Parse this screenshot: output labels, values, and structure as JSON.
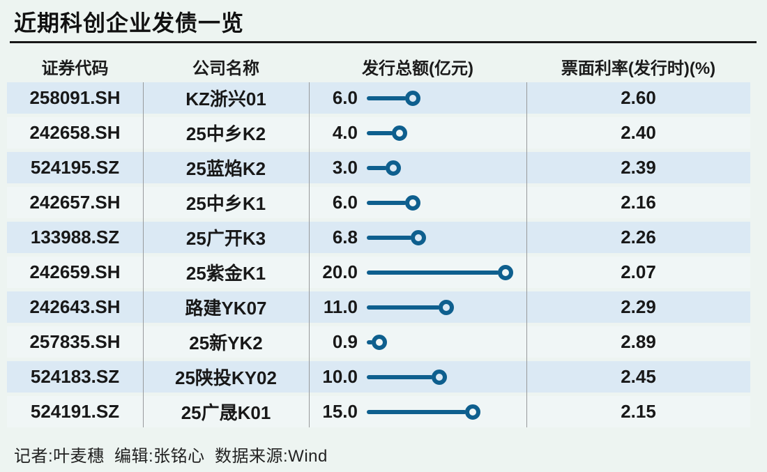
{
  "title": "近期科创企业发债一览",
  "table": {
    "headers": [
      "证券代码",
      "公司名称",
      "发行总额(亿元)",
      "票面利率(发行时)(%)"
    ],
    "rows": [
      {
        "code": "258091.SH",
        "name": "KZ浙兴01",
        "amount": "6.0",
        "rate": "2.60"
      },
      {
        "code": "242658.SH",
        "name": "25中乡K2",
        "amount": "4.0",
        "rate": "2.40"
      },
      {
        "code": "524195.SZ",
        "name": "25蓝焰K2",
        "amount": "3.0",
        "rate": "2.39"
      },
      {
        "code": "242657.SH",
        "name": "25中乡K1",
        "amount": "6.0",
        "rate": "2.16"
      },
      {
        "code": "133988.SZ",
        "name": "25广开K3",
        "amount": "6.8",
        "rate": "2.26"
      },
      {
        "code": "242659.SH",
        "name": "25紫金K1",
        "amount": "20.0",
        "rate": "2.07"
      },
      {
        "code": "242643.SH",
        "name": "路建YK07",
        "amount": "11.0",
        "rate": "2.29"
      },
      {
        "code": "257835.SH",
        "name": "25新YK2",
        "amount": "0.9",
        "rate": "2.89"
      },
      {
        "code": "524183.SZ",
        "name": "25陕投KY02",
        "amount": "10.0",
        "rate": "2.45"
      },
      {
        "code": "524191.SZ",
        "name": "25广晟K01",
        "amount": "15.0",
        "rate": "2.15"
      }
    ]
  },
  "footer": {
    "text": "记者:叶麦穗  编辑:张铭心  数据来源:Wind"
  },
  "chart_data": {
    "type": "bar",
    "orientation": "horizontal",
    "title": "近期科创企业发债一览",
    "categories": [
      "KZ浙兴01",
      "25中乡K2",
      "25蓝焰K2",
      "25中乡K1",
      "25广开K3",
      "25紫金K1",
      "路建YK07",
      "25新YK2",
      "25陕投KY02",
      "25广晟K01"
    ],
    "category_codes": [
      "258091.SH",
      "242658.SH",
      "524195.SZ",
      "242657.SH",
      "133988.SZ",
      "242659.SH",
      "242643.SH",
      "257835.SH",
      "524183.SZ",
      "524191.SZ"
    ],
    "series": [
      {
        "name": "发行总额(亿元)",
        "values": [
          6.0,
          4.0,
          3.0,
          6.0,
          6.8,
          20.0,
          11.0,
          0.9,
          10.0,
          15.0
        ]
      },
      {
        "name": "票面利率(发行时)(%)",
        "values": [
          2.6,
          2.4,
          2.39,
          2.16,
          2.26,
          2.07,
          2.29,
          2.89,
          2.45,
          2.15
        ]
      }
    ],
    "xlim": [
      0,
      20
    ],
    "grid": false,
    "legend_position": "none",
    "marker": "open-circle-lollipop"
  },
  "colors": {
    "bar": "#0e5f8e",
    "row_odd": "#dbe9f4",
    "row_even": "#f0f6f6",
    "background": "#edf4f1",
    "title_rule": "#171717",
    "column_divider": "#97999b",
    "text": "#1b1b1b"
  }
}
